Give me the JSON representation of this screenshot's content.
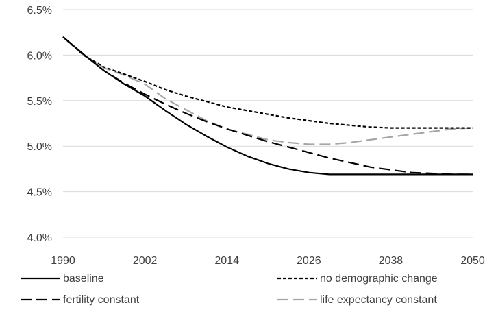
{
  "chart_data": {
    "type": "line",
    "x": [
      1990,
      1993,
      1996,
      1999,
      2002,
      2005,
      2008,
      2011,
      2014,
      2017,
      2020,
      2023,
      2026,
      2029,
      2032,
      2035,
      2038,
      2041,
      2044,
      2047,
      2050
    ],
    "x_ticks": [
      "1990",
      "2002",
      "2014",
      "2026",
      "2038",
      "2050"
    ],
    "y_ticks": [
      "4.0%",
      "4.5%",
      "5.0%",
      "5.5%",
      "6.0%",
      "6.5%"
    ],
    "ylim": [
      4.0,
      6.5
    ],
    "grid": "horizontal",
    "legend_position": "bottom",
    "series": [
      {
        "name": "baseline",
        "color": "#000000",
        "dash": "solid",
        "values": [
          6.2,
          6.01,
          5.83,
          5.68,
          5.55,
          5.39,
          5.24,
          5.11,
          4.99,
          4.89,
          4.81,
          4.75,
          4.71,
          4.69,
          4.69,
          4.69,
          4.69,
          4.69,
          4.69,
          4.69,
          4.69
        ]
      },
      {
        "name": "no demographic change",
        "color": "#000000",
        "dash": "short",
        "values": [
          6.2,
          6.0,
          5.87,
          5.79,
          5.71,
          5.62,
          5.55,
          5.49,
          5.43,
          5.39,
          5.35,
          5.31,
          5.28,
          5.25,
          5.23,
          5.21,
          5.2,
          5.2,
          5.2,
          5.2,
          5.2
        ]
      },
      {
        "name": "fertility constant",
        "color": "#000000",
        "dash": "long",
        "values": [
          6.2,
          6.01,
          5.83,
          5.69,
          5.57,
          5.46,
          5.36,
          5.27,
          5.19,
          5.12,
          5.05,
          4.99,
          4.93,
          4.87,
          4.82,
          4.77,
          4.74,
          4.71,
          4.7,
          4.69,
          4.69
        ]
      },
      {
        "name": "life expectancy constant",
        "color": "#a6a6a6",
        "dash": "long",
        "values": [
          6.2,
          6.0,
          5.86,
          5.78,
          5.68,
          5.52,
          5.4,
          5.28,
          5.19,
          5.13,
          5.07,
          5.04,
          5.02,
          5.02,
          5.04,
          5.07,
          5.1,
          5.13,
          5.16,
          5.19,
          5.2
        ]
      }
    ]
  }
}
